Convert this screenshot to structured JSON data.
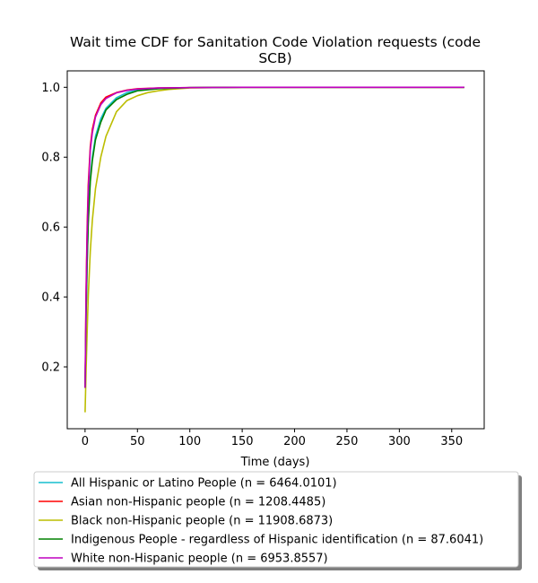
{
  "chart_data": {
    "type": "line",
    "title": [
      "Wait time CDF for Sanitation Code Violation  requests (code",
      "SCB)"
    ],
    "xlabel": "Time (days)",
    "ylabel": "",
    "xlim": [
      -17,
      381
    ],
    "ylim": [
      0.023,
      1.047
    ],
    "xticks": [
      0,
      50,
      100,
      150,
      200,
      250,
      300,
      350
    ],
    "yticks": [
      0.2,
      0.4,
      0.6,
      0.8,
      1.0
    ],
    "xtick_labels": [
      "0",
      "50",
      "100",
      "150",
      "200",
      "250",
      "300",
      "350"
    ],
    "ytick_labels": [
      "0.2",
      "0.4",
      "0.6",
      "0.8",
      "1.0"
    ],
    "grid": false,
    "legend_position": "below",
    "series": [
      {
        "name": "All Hispanic or Latino People (n = 6464.0101)",
        "color": "#17becf",
        "x": [
          0,
          1,
          2,
          3,
          5,
          7,
          10,
          15,
          20,
          30,
          40,
          50,
          70,
          100,
          150,
          200,
          300,
          362
        ],
        "y": [
          0.14,
          0.35,
          0.5,
          0.62,
          0.74,
          0.8,
          0.86,
          0.91,
          0.94,
          0.97,
          0.985,
          0.992,
          0.997,
          0.999,
          1.0,
          1.0,
          1.0,
          1.0
        ]
      },
      {
        "name": "Asian non-Hispanic people (n = 1208.4485)",
        "color": "#ff0000",
        "x": [
          0,
          1,
          2,
          3,
          5,
          7,
          10,
          15,
          20,
          30,
          40,
          50,
          70,
          100,
          150,
          200,
          300,
          362
        ],
        "y": [
          0.14,
          0.42,
          0.6,
          0.72,
          0.83,
          0.88,
          0.92,
          0.955,
          0.972,
          0.985,
          0.992,
          0.996,
          0.998,
          0.999,
          1.0,
          1.0,
          1.0,
          1.0
        ]
      },
      {
        "name": "Black non-Hispanic people (n = 11908.6873)",
        "color": "#bcbd00",
        "x": [
          0,
          1,
          2,
          3,
          5,
          7,
          10,
          15,
          20,
          30,
          40,
          50,
          60,
          70,
          80,
          100,
          150,
          200,
          300,
          362
        ],
        "y": [
          0.07,
          0.19,
          0.3,
          0.4,
          0.53,
          0.62,
          0.71,
          0.8,
          0.86,
          0.93,
          0.962,
          0.976,
          0.985,
          0.99,
          0.994,
          0.998,
          1.0,
          1.0,
          1.0,
          1.0
        ]
      },
      {
        "name": "Indigenous People - regardless of Hispanic identification (n = 87.6041)",
        "color": "#008000",
        "x": [
          0,
          1,
          2,
          3,
          5,
          7,
          10,
          15,
          20,
          30,
          40,
          50,
          70,
          100,
          150,
          200,
          300,
          362
        ],
        "y": [
          0.14,
          0.35,
          0.5,
          0.61,
          0.73,
          0.79,
          0.85,
          0.9,
          0.935,
          0.965,
          0.98,
          0.99,
          0.996,
          0.999,
          1.0,
          1.0,
          1.0,
          1.0
        ]
      },
      {
        "name": "White non-Hispanic people (n = 6953.8557)",
        "color": "#bf00bf",
        "x": [
          0,
          1,
          2,
          3,
          5,
          7,
          10,
          15,
          20,
          30,
          40,
          50,
          70,
          100,
          150,
          200,
          300,
          362
        ],
        "y": [
          0.14,
          0.4,
          0.58,
          0.7,
          0.82,
          0.87,
          0.915,
          0.95,
          0.968,
          0.984,
          0.991,
          0.995,
          0.998,
          0.999,
          1.0,
          1.0,
          1.0,
          1.0
        ]
      }
    ]
  }
}
